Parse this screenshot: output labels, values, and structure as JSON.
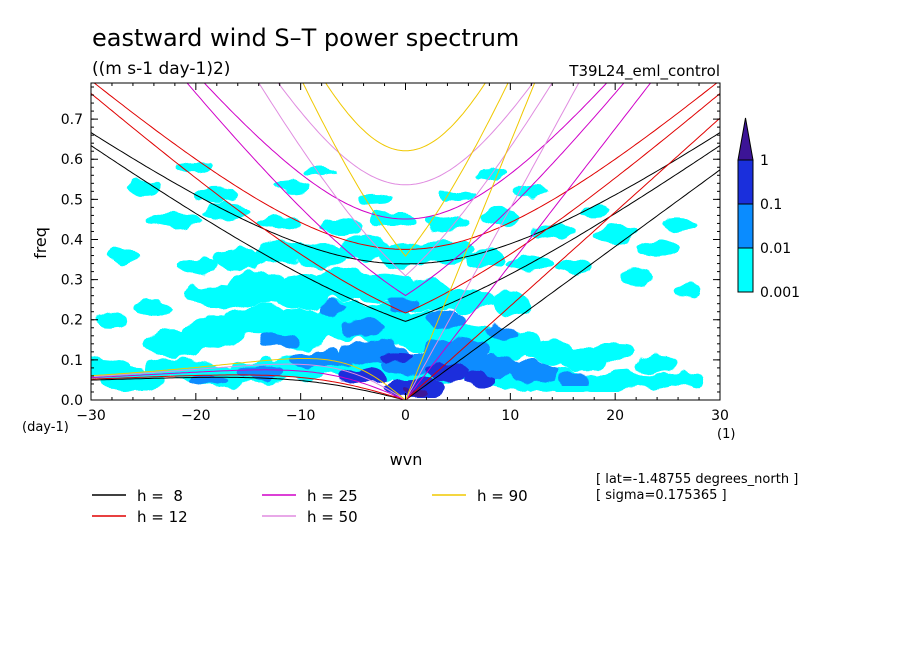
{
  "chart_data": {
    "type": "heatmap",
    "title": "eastward wind S–T power spectrum",
    "units": "((m s-1 day-1)2)",
    "run_label": "T39L24_eml_control",
    "xlabel": "wvn",
    "ylabel": "freq",
    "x_unit": "(1)",
    "y_unit": "(day-1)",
    "xlim": [
      -30,
      30
    ],
    "ylim": [
      0,
      0.79
    ],
    "xticks": [
      -30,
      -20,
      -10,
      0,
      10,
      20,
      30
    ],
    "xtick_labels": [
      "−30",
      "−20",
      "−10",
      "0",
      "10",
      "20",
      "30"
    ],
    "yticks": [
      0,
      0.1,
      0.2,
      0.3,
      0.4,
      0.5,
      0.6,
      0.7
    ],
    "ytick_labels": [
      "0.0",
      "0.1",
      "0.2",
      "0.3",
      "0.4",
      "0.5",
      "0.6",
      "0.7"
    ],
    "colorbar": {
      "levels": [
        "0.001",
        "0.01",
        "0.1",
        "1"
      ],
      "colors": [
        "#00ffff",
        "#0a8cff",
        "#1a2fdc",
        "#3c1496"
      ],
      "extend": "max"
    },
    "contours": [
      {
        "level": 0.001,
        "color": "#00ffff",
        "blobs": [
          [
            -29,
            0.08,
            2.5,
            0.025
          ],
          [
            -26,
            0.05,
            3,
            0.03
          ],
          [
            -22,
            0.08,
            3,
            0.025
          ],
          [
            -18,
            0.06,
            3,
            0.03
          ],
          [
            -14,
            0.07,
            3,
            0.03
          ],
          [
            -10,
            0.08,
            3,
            0.03
          ],
          [
            -6,
            0.09,
            3,
            0.03
          ],
          [
            -2,
            0.08,
            3,
            0.03
          ],
          [
            2,
            0.06,
            3,
            0.03
          ],
          [
            6,
            0.08,
            3,
            0.03
          ],
          [
            10,
            0.06,
            3,
            0.03
          ],
          [
            14,
            0.05,
            3,
            0.03
          ],
          [
            18,
            0.04,
            3,
            0.02
          ],
          [
            22,
            0.05,
            3,
            0.02
          ],
          [
            26,
            0.05,
            2.5,
            0.02
          ],
          [
            -22,
            0.14,
            3,
            0.03
          ],
          [
            -18,
            0.17,
            3,
            0.04
          ],
          [
            -14,
            0.2,
            3,
            0.04
          ],
          [
            -10,
            0.18,
            3,
            0.05
          ],
          [
            -6,
            0.2,
            3,
            0.05
          ],
          [
            -2,
            0.19,
            3,
            0.05
          ],
          [
            2,
            0.17,
            3,
            0.05
          ],
          [
            6,
            0.15,
            3,
            0.04
          ],
          [
            10,
            0.14,
            3,
            0.04
          ],
          [
            14,
            0.12,
            2.5,
            0.03
          ],
          [
            17,
            0.1,
            2.5,
            0.03
          ],
          [
            20,
            0.12,
            2,
            0.02
          ],
          [
            24,
            0.09,
            2,
            0.02
          ],
          [
            -18,
            0.26,
            3,
            0.03
          ],
          [
            -14,
            0.28,
            3,
            0.04
          ],
          [
            -10,
            0.27,
            3,
            0.04
          ],
          [
            -6,
            0.29,
            3,
            0.04
          ],
          [
            -2,
            0.28,
            3,
            0.04
          ],
          [
            2,
            0.26,
            3,
            0.04
          ],
          [
            6,
            0.25,
            2.5,
            0.03
          ],
          [
            10,
            0.24,
            2,
            0.03
          ],
          [
            -24,
            0.23,
            2,
            0.02
          ],
          [
            -16,
            0.35,
            2.5,
            0.03
          ],
          [
            -12,
            0.37,
            2.5,
            0.03
          ],
          [
            -8,
            0.36,
            2.5,
            0.03
          ],
          [
            -4,
            0.38,
            2.5,
            0.03
          ],
          [
            0,
            0.36,
            2.5,
            0.03
          ],
          [
            4,
            0.37,
            2.5,
            0.03
          ],
          [
            8,
            0.35,
            2,
            0.02
          ],
          [
            12,
            0.34,
            2,
            0.02
          ],
          [
            16,
            0.33,
            1.8,
            0.02
          ],
          [
            -20,
            0.33,
            2,
            0.02
          ],
          [
            -22,
            0.45,
            2.5,
            0.02
          ],
          [
            -17,
            0.47,
            2.5,
            0.02
          ],
          [
            -12,
            0.44,
            2,
            0.02
          ],
          [
            -6,
            0.43,
            2,
            0.02
          ],
          [
            -1,
            0.45,
            2,
            0.02
          ],
          [
            4,
            0.44,
            2,
            0.02
          ],
          [
            9,
            0.46,
            2,
            0.02
          ],
          [
            14,
            0.42,
            2,
            0.02
          ],
          [
            20,
            0.41,
            2,
            0.02
          ],
          [
            24,
            0.38,
            1.8,
            0.02
          ],
          [
            -25,
            0.53,
            1.8,
            0.02
          ],
          [
            -18,
            0.51,
            2,
            0.02
          ],
          [
            -11,
            0.53,
            1.8,
            0.015
          ],
          [
            -3,
            0.5,
            1.5,
            0.015
          ],
          [
            5,
            0.51,
            1.8,
            0.015
          ],
          [
            12,
            0.52,
            1.5,
            0.015
          ],
          [
            18,
            0.47,
            1.5,
            0.015
          ],
          [
            26,
            0.44,
            1.5,
            0.015
          ],
          [
            -27,
            0.36,
            1.5,
            0.02
          ],
          [
            -28,
            0.2,
            1.5,
            0.02
          ],
          [
            -20,
            0.58,
            1.5,
            0.012
          ],
          [
            -8,
            0.57,
            1.5,
            0.012
          ],
          [
            8,
            0.56,
            1.5,
            0.012
          ],
          [
            22,
            0.31,
            1.5,
            0.02
          ],
          [
            27,
            0.27,
            1.5,
            0.015
          ]
        ]
      },
      {
        "level": 0.01,
        "color": "#0a8cff",
        "blobs": [
          [
            -8,
            0.1,
            3,
            0.025
          ],
          [
            -3,
            0.12,
            3,
            0.03
          ],
          [
            1,
            0.09,
            3,
            0.03
          ],
          [
            5,
            0.12,
            3,
            0.035
          ],
          [
            8,
            0.08,
            3,
            0.03
          ],
          [
            12,
            0.07,
            2.5,
            0.025
          ],
          [
            -14,
            0.07,
            2,
            0.02
          ],
          [
            -12,
            0.15,
            1.8,
            0.02
          ],
          [
            -4,
            0.18,
            2,
            0.02
          ],
          [
            4,
            0.2,
            2,
            0.025
          ],
          [
            9,
            0.17,
            1.5,
            0.02
          ],
          [
            -19,
            0.05,
            1.8,
            0.015
          ],
          [
            16,
            0.05,
            1.5,
            0.015
          ],
          [
            -7,
            0.23,
            1.5,
            0.015
          ],
          [
            0,
            0.24,
            1.5,
            0.015
          ]
        ]
      },
      {
        "level": 0.1,
        "color": "#1a2fdc",
        "blobs": [
          [
            -4,
            0.06,
            2.5,
            0.02
          ],
          [
            1,
            0.03,
            3,
            0.025
          ],
          [
            4,
            0.07,
            2,
            0.025
          ],
          [
            7,
            0.05,
            1.5,
            0.02
          ],
          [
            -1,
            0.11,
            1.5,
            0.015
          ]
        ]
      },
      {
        "level": 1,
        "color": "#3c1496",
        "blobs": [
          [
            1,
            0.02,
            1.2,
            0.012
          ]
        ]
      }
    ],
    "dispersion_series": [
      {
        "name": "h =  8",
        "h": 8,
        "color": "#000000"
      },
      {
        "name": "h = 12",
        "h": 12,
        "color": "#e00000"
      },
      {
        "name": "h = 25",
        "h": 25,
        "color": "#d000c8"
      },
      {
        "name": "h = 50",
        "h": 50,
        "color": "#e08ce0"
      },
      {
        "name": "h = 90",
        "h": 90,
        "color": "#f0c800"
      }
    ],
    "annotations": [
      "[ lat=-1.48755 degrees_north ]",
      "[ sigma=0.175365 ]"
    ]
  }
}
